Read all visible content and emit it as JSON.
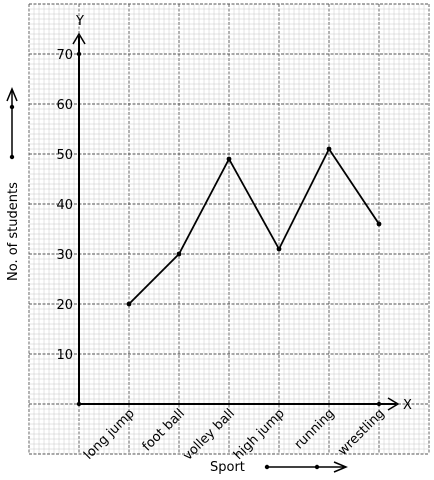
{
  "chart_data": {
    "type": "line",
    "xlabel": "Sport",
    "ylabel": "No. of students",
    "x_axis_letter": "X",
    "y_axis_letter": "Y",
    "categories": [
      "long jump",
      "foot ball",
      "volley ball",
      "high jump",
      "running",
      "wrestling"
    ],
    "values": [
      20,
      30,
      49,
      31,
      51,
      36
    ],
    "y_ticks": [
      "10",
      "20",
      "30",
      "40",
      "50",
      "60",
      "70"
    ],
    "ylim": [
      0,
      70
    ],
    "grid": true,
    "line_color": "#000000",
    "grid_colors": {
      "minor": "#c8c8c8",
      "major": "#555555"
    }
  }
}
